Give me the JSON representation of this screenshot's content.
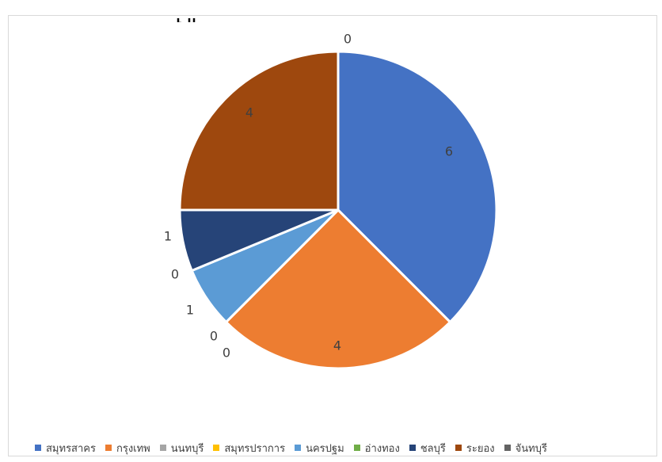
{
  "chart_data": {
    "type": "pie",
    "title": "",
    "categories": [
      "สมุทรสาคร",
      "กรุงเทพ",
      "นนทบุรี",
      "สมุทรปราการ",
      "นครปฐม",
      "อ่างทอง",
      "ชลบุรี",
      "ระยอง",
      "จันทบุรี"
    ],
    "values": [
      6,
      4,
      0,
      0,
      1,
      0,
      1,
      4,
      0
    ],
    "colors": [
      "#4472c4",
      "#ed7d31",
      "#a5a5a5",
      "#ffc000",
      "#5b9bd5",
      "#70ad47",
      "#264478",
      "#9e480e",
      "#636363"
    ],
    "legend_position": "bottom"
  }
}
